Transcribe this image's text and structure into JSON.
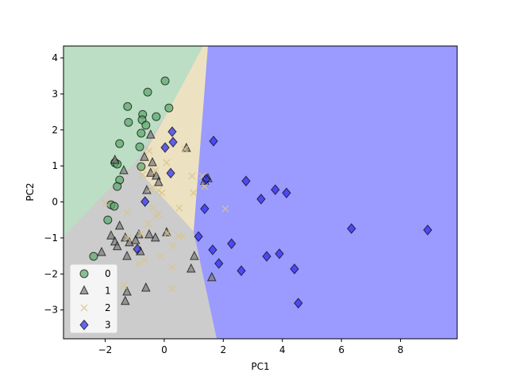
{
  "chart_data": {
    "type": "scatter",
    "xlabel": "PC1",
    "ylabel": "PC2",
    "xlim": [
      -3.41,
      9.92
    ],
    "ylim": [
      -3.8,
      4.33
    ],
    "xticks": [
      {
        "value": -2,
        "label": "−2"
      },
      0,
      2,
      4,
      6,
      8
    ],
    "yticks": [
      {
        "value": -3,
        "label": "−3"
      },
      {
        "value": -2,
        "label": "−2"
      },
      {
        "value": -1,
        "label": "−1"
      },
      0,
      1,
      2,
      3,
      4
    ],
    "legend": "lower left",
    "series": [
      {
        "name": "0",
        "color": "#5aa66a",
        "marker": "circle",
        "x": [
          0.03,
          -0.56,
          -1.24,
          0.16,
          -0.73,
          -0.75,
          -0.27,
          -1.21,
          -0.62,
          -0.78,
          -1.51,
          -0.83,
          -1.67,
          -1.59,
          -0.78,
          -1.51,
          -1.59,
          -1.91,
          -1.8,
          -1.69,
          -2.39
        ],
        "values": [
          3.36,
          3.05,
          2.65,
          2.61,
          2.43,
          2.28,
          2.37,
          2.21,
          2.13,
          1.91,
          1.62,
          1.53,
          1.09,
          1.05,
          0.98,
          0.61,
          0.43,
          -0.5,
          -0.08,
          -0.12,
          -1.51
        ]
      },
      {
        "name": "1",
        "color": "#7a7a7a",
        "marker": "triangle",
        "x": [
          -0.46,
          -1.67,
          -1.37,
          -0.67,
          -0.4,
          -0.46,
          -0.27,
          -0.19,
          -0.59,
          0.75,
          1.37,
          1.48,
          -1.51,
          -1.8,
          -1.32,
          -1.18,
          -0.86,
          -0.51,
          -0.3,
          0.08,
          -0.97,
          -1.67,
          -1.59,
          -0.81,
          -1.26,
          -2.12,
          1.02,
          0.91,
          1.61,
          -1.32,
          -1.26,
          -0.62
        ],
        "values": [
          1.86,
          1.16,
          0.87,
          1.24,
          1.09,
          0.8,
          0.72,
          0.54,
          0.32,
          1.49,
          0.58,
          0.65,
          -0.67,
          -0.94,
          -1.0,
          -1.13,
          -0.91,
          -0.91,
          -1.0,
          -0.85,
          -1.07,
          -1.11,
          -1.24,
          -1.38,
          -1.51,
          -1.4,
          -1.51,
          -1.86,
          -2.1,
          -2.76,
          -2.5,
          -2.39
        ]
      },
      {
        "name": "2",
        "color": "#d9c48a",
        "marker": "x",
        "x": [
          -0.51,
          0.7,
          0.08,
          -0.3,
          -0.73,
          0.94,
          1.29,
          -0.46,
          -0.19,
          -0.08,
          0.99,
          1.37,
          -0.38,
          -0.19,
          -0.27,
          0.51,
          2.07,
          -0.54,
          -0.78,
          0.62,
          0.48,
          0.3,
          -0.13,
          -0.91,
          -1.24,
          -0.67,
          -0.86,
          -1.26,
          0.27,
          -1.37,
          0.27,
          -1.99,
          -1.02,
          0.11
        ],
        "values": [
          1.42,
          1.46,
          1.09,
          0.87,
          0.76,
          0.72,
          0.72,
          0.36,
          0.32,
          0.25,
          0.25,
          0.43,
          -0.17,
          -0.34,
          -0.39,
          -0.17,
          -0.19,
          -0.61,
          -0.89,
          -0.96,
          -0.94,
          -1.22,
          -1.51,
          -1.27,
          -1.0,
          -1.62,
          -1.71,
          -0.3,
          -1.82,
          -2.32,
          -2.41,
          -0.03,
          -1.35,
          -0.87
        ]
      },
      {
        "name": "3",
        "color": "#2828f0",
        "marker": "diamond",
        "x": [
          0.27,
          0.3,
          0.03,
          1.67,
          0.22,
          1.42,
          2.77,
          3.76,
          4.14,
          3.28,
          -0.65,
          1.37,
          1.16,
          2.28,
          1.64,
          1.85,
          2.61,
          3.47,
          3.9,
          4.41,
          4.54,
          6.34,
          8.92,
          -0.91
        ],
        "values": [
          1.95,
          1.66,
          1.51,
          1.69,
          0.8,
          0.63,
          0.58,
          0.34,
          0.25,
          0.08,
          0.01,
          -0.19,
          -0.96,
          -1.16,
          -1.33,
          -1.71,
          -1.91,
          -1.51,
          -1.44,
          -1.86,
          -2.81,
          -0.74,
          -0.78,
          -1.31
        ]
      }
    ]
  }
}
